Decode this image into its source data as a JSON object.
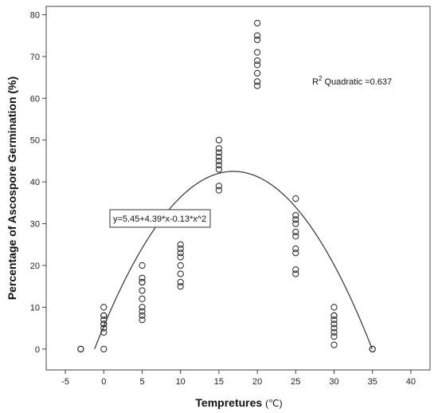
{
  "chart_data": {
    "type": "scatter",
    "xlabel": "Tempretures",
    "xunit": "(℃)",
    "ylabel": "Percentage of Ascospore Germination (%)",
    "xlim": [
      -7.5,
      42.5
    ],
    "ylim": [
      -5,
      82
    ],
    "x_ticks": [
      -5,
      0,
      5,
      10,
      15,
      20,
      25,
      30,
      35,
      40
    ],
    "y_ticks": [
      0,
      10,
      20,
      30,
      40,
      50,
      60,
      70,
      80
    ],
    "grid": false,
    "points": [
      [
        -3,
        0
      ],
      [
        -3,
        0
      ],
      [
        0,
        0
      ],
      [
        0,
        4
      ],
      [
        0,
        5
      ],
      [
        0,
        6
      ],
      [
        0,
        6
      ],
      [
        0,
        7
      ],
      [
        0,
        8
      ],
      [
        0,
        8
      ],
      [
        0,
        10
      ],
      [
        5,
        7
      ],
      [
        5,
        8
      ],
      [
        5,
        9
      ],
      [
        5,
        10
      ],
      [
        5,
        12
      ],
      [
        5,
        14
      ],
      [
        5,
        16
      ],
      [
        5,
        16
      ],
      [
        5,
        17
      ],
      [
        5,
        20
      ],
      [
        10,
        15
      ],
      [
        10,
        16
      ],
      [
        10,
        18
      ],
      [
        10,
        20
      ],
      [
        10,
        22
      ],
      [
        10,
        23
      ],
      [
        10,
        24
      ],
      [
        10,
        25
      ],
      [
        15,
        38
      ],
      [
        15,
        39
      ],
      [
        15,
        43
      ],
      [
        15,
        44
      ],
      [
        15,
        45
      ],
      [
        15,
        46
      ],
      [
        15,
        47
      ],
      [
        15,
        48
      ],
      [
        15,
        50
      ],
      [
        20,
        63
      ],
      [
        20,
        64
      ],
      [
        20,
        66
      ],
      [
        20,
        68
      ],
      [
        20,
        69
      ],
      [
        20,
        71
      ],
      [
        20,
        74
      ],
      [
        20,
        75
      ],
      [
        20,
        78
      ],
      [
        25,
        18
      ],
      [
        25,
        19
      ],
      [
        25,
        23
      ],
      [
        25,
        24
      ],
      [
        25,
        27
      ],
      [
        25,
        28
      ],
      [
        25,
        30
      ],
      [
        25,
        31
      ],
      [
        25,
        32
      ],
      [
        25,
        36
      ],
      [
        30,
        1
      ],
      [
        30,
        3
      ],
      [
        30,
        4
      ],
      [
        30,
        5
      ],
      [
        30,
        6
      ],
      [
        30,
        7
      ],
      [
        30,
        8
      ],
      [
        30,
        8
      ],
      [
        30,
        10
      ],
      [
        35,
        0
      ],
      [
        35,
        0
      ]
    ],
    "fit": {
      "type": "quadratic",
      "intercept": 5.45,
      "b1": 4.39,
      "b2": -0.13,
      "equation_label": "y=5.45+4.39*x-0.13*x^2",
      "r2_prefix": "R",
      "r2_sup": "2",
      "r2_label": " Quadratic =0.637"
    }
  }
}
